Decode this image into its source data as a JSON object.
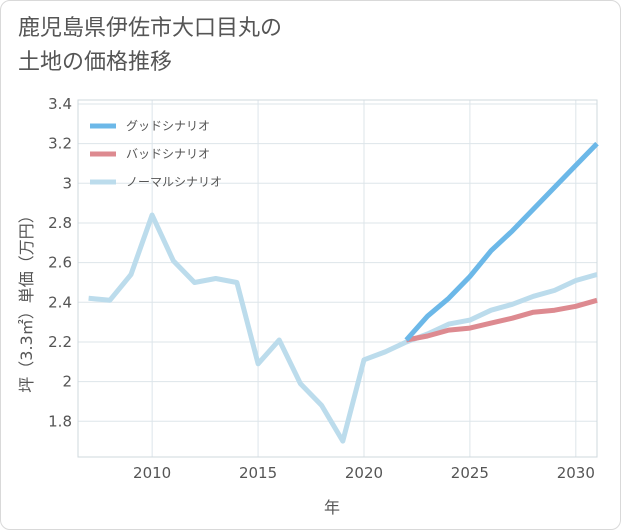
{
  "title_line1": "鹿児島県伊佐市大口目丸の",
  "title_line2": "土地の価格推移",
  "chart_data": {
    "type": "line",
    "xlabel": "年",
    "ylabel": "坪（3.3㎡）単価（万円）",
    "xlim": [
      2006.5,
      2031
    ],
    "ylim": [
      1.62,
      3.42
    ],
    "x_ticks": [
      2010,
      2015,
      2020,
      2025,
      2030
    ],
    "x_tick_labels": [
      "2010",
      "2015",
      "2020",
      "2025",
      "2030"
    ],
    "y_ticks": [
      1.8,
      2,
      2.2,
      2.4,
      2.6,
      2.8,
      3,
      3.2,
      3.4
    ],
    "y_tick_labels": [
      "1.8",
      "2",
      "2.2",
      "2.4",
      "2.6",
      "2.8",
      "3",
      "3.2",
      "3.4"
    ],
    "grid": true,
    "legend_position": "top-left",
    "series": [
      {
        "name": "グッドシナリオ",
        "color": "#6cb8e8",
        "x": [
          2022,
          2023,
          2024,
          2025,
          2026,
          2027,
          2028,
          2029,
          2030,
          2031
        ],
        "y": [
          2.21,
          2.33,
          2.42,
          2.53,
          2.66,
          2.76,
          2.87,
          2.98,
          3.09,
          3.2
        ]
      },
      {
        "name": "バッドシナリオ",
        "color": "#dd8a90",
        "x": [
          2022,
          2023,
          2024,
          2025,
          2026,
          2027,
          2028,
          2029,
          2030,
          2031
        ],
        "y": [
          2.21,
          2.23,
          2.26,
          2.27,
          2.295,
          2.32,
          2.35,
          2.36,
          2.38,
          2.41
        ]
      },
      {
        "name": "ノーマルシナリオ",
        "color": "#bcdcec",
        "x": [
          2007,
          2008,
          2009,
          2010,
          2011,
          2012,
          2013,
          2014,
          2015,
          2016,
          2017,
          2018,
          2019,
          2020,
          2021,
          2022,
          2023,
          2024,
          2025,
          2026,
          2027,
          2028,
          2029,
          2030,
          2031
        ],
        "y": [
          2.42,
          2.41,
          2.54,
          2.84,
          2.61,
          2.5,
          2.52,
          2.5,
          2.09,
          2.21,
          1.99,
          1.88,
          1.7,
          2.11,
          2.15,
          2.2,
          2.24,
          2.29,
          2.31,
          2.36,
          2.39,
          2.43,
          2.46,
          2.51,
          2.54
        ]
      }
    ]
  }
}
